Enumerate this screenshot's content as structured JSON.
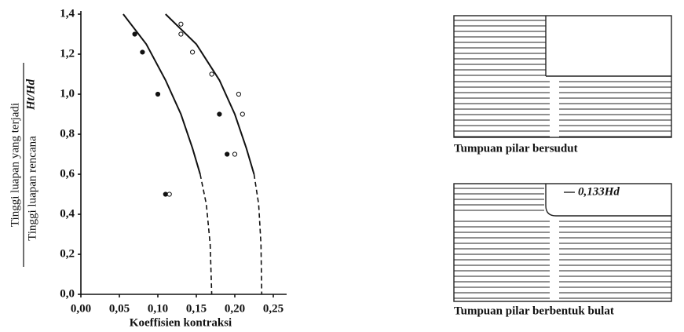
{
  "chart_data": {
    "type": "scatter",
    "xlabel": "Koeffisien kontraksi",
    "ylabel": [
      "Tinggi luapan yang terjadi",
      "Tinggi luapan rencana",
      "Ht/Hd"
    ],
    "xlim": [
      0,
      0.25
    ],
    "ylim": [
      0,
      1.4
    ],
    "xticks": [
      {
        "value": 0,
        "label": "0,00"
      },
      {
        "value": 0.05,
        "label": "0,05"
      },
      {
        "value": 0.1,
        "label": "0,10"
      },
      {
        "value": 0.15,
        "label": "0,15"
      },
      {
        "value": 0.2,
        "label": "0,20"
      },
      {
        "value": 0.25,
        "label": "0,25"
      }
    ],
    "yticks": [
      {
        "value": 0,
        "label": "0,0"
      },
      {
        "value": 0.2,
        "label": "0,2"
      },
      {
        "value": 0.4,
        "label": "0,4"
      },
      {
        "value": 0.6,
        "label": "0,6"
      },
      {
        "value": 0.8,
        "label": "0,8"
      },
      {
        "value": 1.0,
        "label": "1,0"
      },
      {
        "value": 1.2,
        "label": "1,2"
      },
      {
        "value": 1.4,
        "label": "1,4"
      }
    ],
    "series": [
      {
        "marker": "filled",
        "color": "#111",
        "x": [
          0.07,
          0.08,
          0.1,
          0.11,
          0.18,
          0.19
        ],
        "values": [
          1.3,
          1.21,
          1.0,
          0.5,
          0.9,
          0.7
        ]
      },
      {
        "marker": "open",
        "color": "#111",
        "x": [
          0.13,
          0.13,
          0.145,
          0.17,
          0.205,
          0.21,
          0.2,
          0.115
        ],
        "values": [
          1.35,
          1.3,
          1.21,
          1.1,
          1.0,
          0.9,
          0.7,
          0.5
        ]
      }
    ],
    "curves": [
      {
        "style": "solid",
        "x": [
          0.055,
          0.085,
          0.11,
          0.13,
          0.145,
          0.155
        ],
        "values": [
          1.4,
          1.25,
          1.07,
          0.9,
          0.73,
          0.6
        ]
      },
      {
        "style": "dashed",
        "x": [
          0.155,
          0.163,
          0.168,
          0.17
        ],
        "values": [
          0.6,
          0.45,
          0.25,
          0
        ]
      },
      {
        "style": "solid",
        "x": [
          0.11,
          0.15,
          0.18,
          0.2,
          0.215,
          0.225
        ],
        "values": [
          1.4,
          1.25,
          1.07,
          0.9,
          0.73,
          0.6
        ]
      },
      {
        "style": "dashed",
        "x": [
          0.225,
          0.231,
          0.234,
          0.235
        ],
        "values": [
          0.6,
          0.45,
          0.25,
          0
        ]
      }
    ]
  },
  "diagrams": [
    {
      "caption": "Tumpuan pilar bersudut"
    },
    {
      "caption": "Tumpuan pilar berbentuk bulat",
      "annotation": "0,133Hd"
    }
  ]
}
